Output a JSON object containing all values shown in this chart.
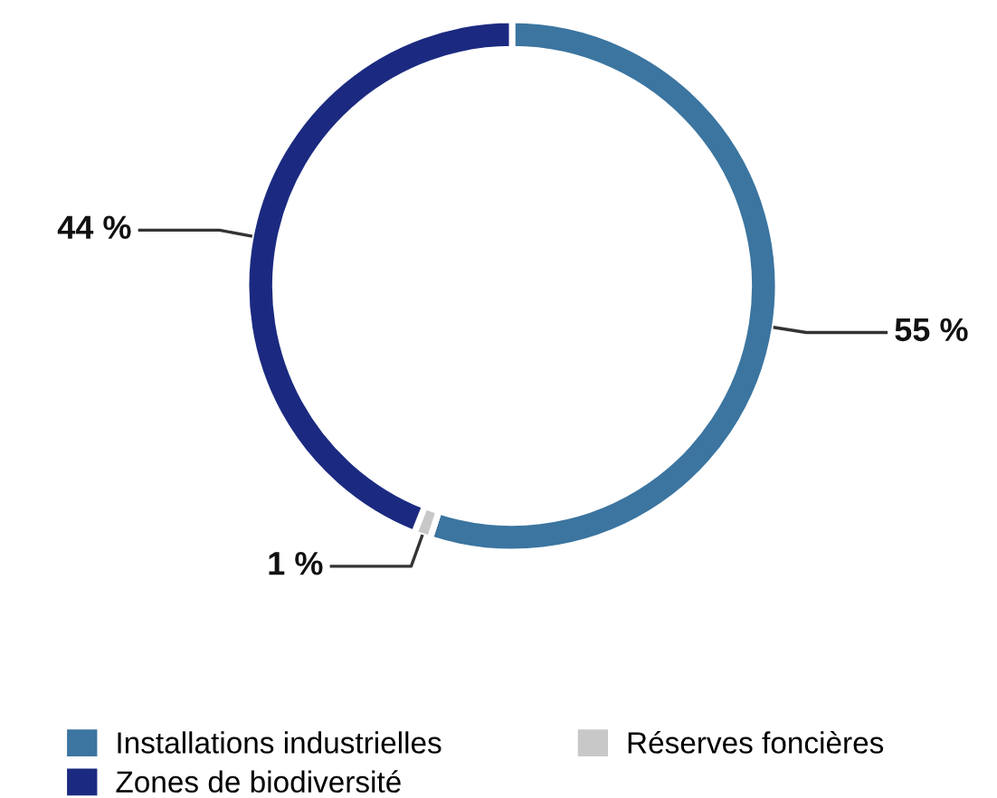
{
  "chart_data": {
    "type": "donut",
    "categories": [
      "Installations industrielles",
      "Réserves foncières",
      "Zones de biodiversité"
    ],
    "values": [
      55,
      1,
      44
    ],
    "value_labels": [
      "55 %",
      "1 %",
      "44 %"
    ],
    "colors": [
      "#3b75a0",
      "#c8c8c8",
      "#1b2a80"
    ],
    "legend": "bottom"
  }
}
